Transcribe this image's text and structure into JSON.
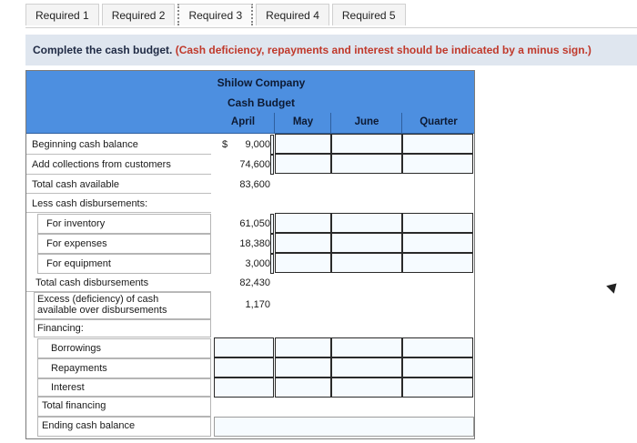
{
  "tabs": [
    "Required 1",
    "Required 2",
    "Required 3",
    "Required 4",
    "Required 5"
  ],
  "instruction": {
    "main": "Complete the cash budget.",
    "note": "(Cash deficiency, repayments and interest should be indicated by a minus sign.)"
  },
  "budget": {
    "company": "Shilow Company",
    "title": "Cash Budget",
    "columns": [
      "April",
      "May",
      "June",
      "Quarter"
    ],
    "currency_symbol": "$",
    "rows": {
      "beginning_cash": {
        "label": "Beginning cash balance",
        "april": "9,000"
      },
      "collections": {
        "label": "Add collections from customers",
        "april": "74,600"
      },
      "total_available": {
        "label": "Total cash available",
        "april": "83,600"
      },
      "less_disb": {
        "label": "Less cash disbursements:"
      },
      "inventory": {
        "label": "For inventory",
        "april": "61,050"
      },
      "expenses": {
        "label": "For expenses",
        "april": "18,380"
      },
      "equipment": {
        "label": "For equipment",
        "april": "3,000"
      },
      "total_disb": {
        "label": "Total cash disbursements",
        "april": "82,430"
      },
      "excess": {
        "label": "Excess (deficiency) of cash available over disbursements",
        "april": "1,170"
      },
      "financing": {
        "label": "Financing:"
      },
      "borrowings": {
        "label": "Borrowings"
      },
      "repayments": {
        "label": "Repayments"
      },
      "interest": {
        "label": "Interest"
      },
      "total_financing": {
        "label": "Total financing"
      },
      "ending_cash": {
        "label": "Ending cash balance"
      }
    }
  },
  "colors": {
    "header_blue": "#4d8fe0",
    "instruction_bg": "#dfe6ef",
    "note_red": "#c0392b"
  }
}
